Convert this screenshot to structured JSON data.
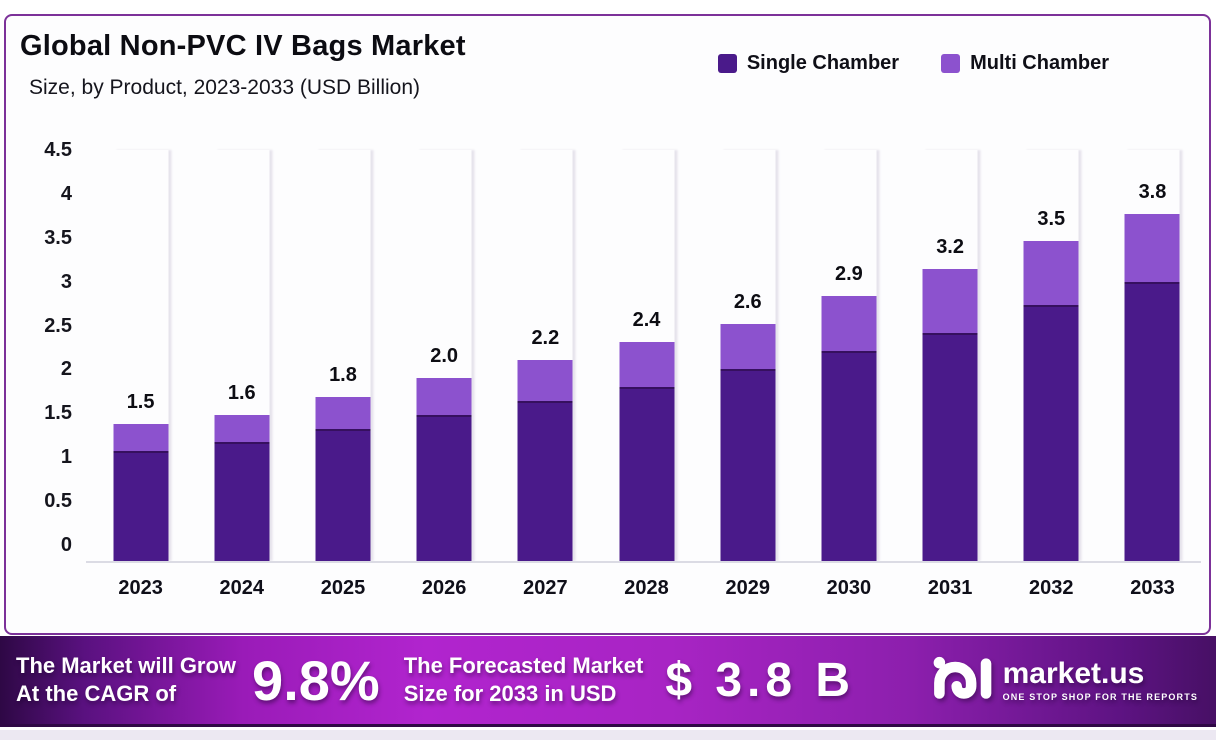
{
  "header": {
    "title": "Global Non-PVC IV Bags Market",
    "subtitle": "Size, by Product, 2023-2033 (USD Billion)"
  },
  "legend": [
    {
      "label": "Single Chamber",
      "color": "#4A1A8A"
    },
    {
      "label": "Multi Chamber",
      "color": "#8C52CE"
    }
  ],
  "chart_data": {
    "type": "bar",
    "stacked": true,
    "title": "Global Non-PVC IV Bags Market Size, by Product, 2023-2033 (USD Billion)",
    "categories": [
      "2023",
      "2024",
      "2025",
      "2026",
      "2027",
      "2028",
      "2029",
      "2030",
      "2031",
      "2032",
      "2033"
    ],
    "series": [
      {
        "name": "Single Chamber",
        "color": "#4A1A8A",
        "values": [
          1.2,
          1.3,
          1.45,
          1.6,
          1.75,
          1.9,
          2.1,
          2.3,
          2.5,
          2.8,
          3.05
        ]
      },
      {
        "name": "Multi Chamber",
        "color": "#8C52CE",
        "values": [
          0.3,
          0.3,
          0.35,
          0.4,
          0.45,
          0.5,
          0.5,
          0.6,
          0.7,
          0.7,
          0.75
        ]
      }
    ],
    "totals": [
      1.5,
      1.6,
      1.8,
      2.0,
      2.2,
      2.4,
      2.6,
      2.9,
      3.2,
      3.5,
      3.8
    ],
    "total_labels": [
      "1.5",
      "1.6",
      "1.8",
      "2.0",
      "2.2",
      "2.4",
      "2.6",
      "2.9",
      "3.2",
      "3.5",
      "3.8"
    ],
    "xlabel": "",
    "ylabel": "",
    "ylim": [
      0,
      4.5
    ],
    "yticks": [
      0,
      0.5,
      1,
      1.5,
      2,
      2.5,
      3,
      3.5,
      4,
      4.5
    ],
    "ytick_labels": [
      "0",
      "0.5",
      "1",
      "1.5",
      "2",
      "2.5",
      "3",
      "3.5",
      "4",
      "4.5"
    ],
    "grid": false,
    "legend_position": "top-right"
  },
  "banner": {
    "grow_line1": "The Market will Grow",
    "grow_line2": "At the CAGR of",
    "cagr": "9.8%",
    "forecast_line1": "The Forecasted Market",
    "forecast_line2": "Size for 2033 in USD",
    "forecast_value": "$ 3.8 B",
    "logo": {
      "name": "market.us",
      "tagline": "ONE STOP SHOP FOR THE REPORTS"
    }
  },
  "colors": {
    "card_border": "#7C3199",
    "single_chamber": "#4A1A8A",
    "multi_chamber": "#8C52CE",
    "banner_bright": "#AC1FC8",
    "banner_dark": "#3C0D5E",
    "baseline": "#DBDBE4"
  }
}
